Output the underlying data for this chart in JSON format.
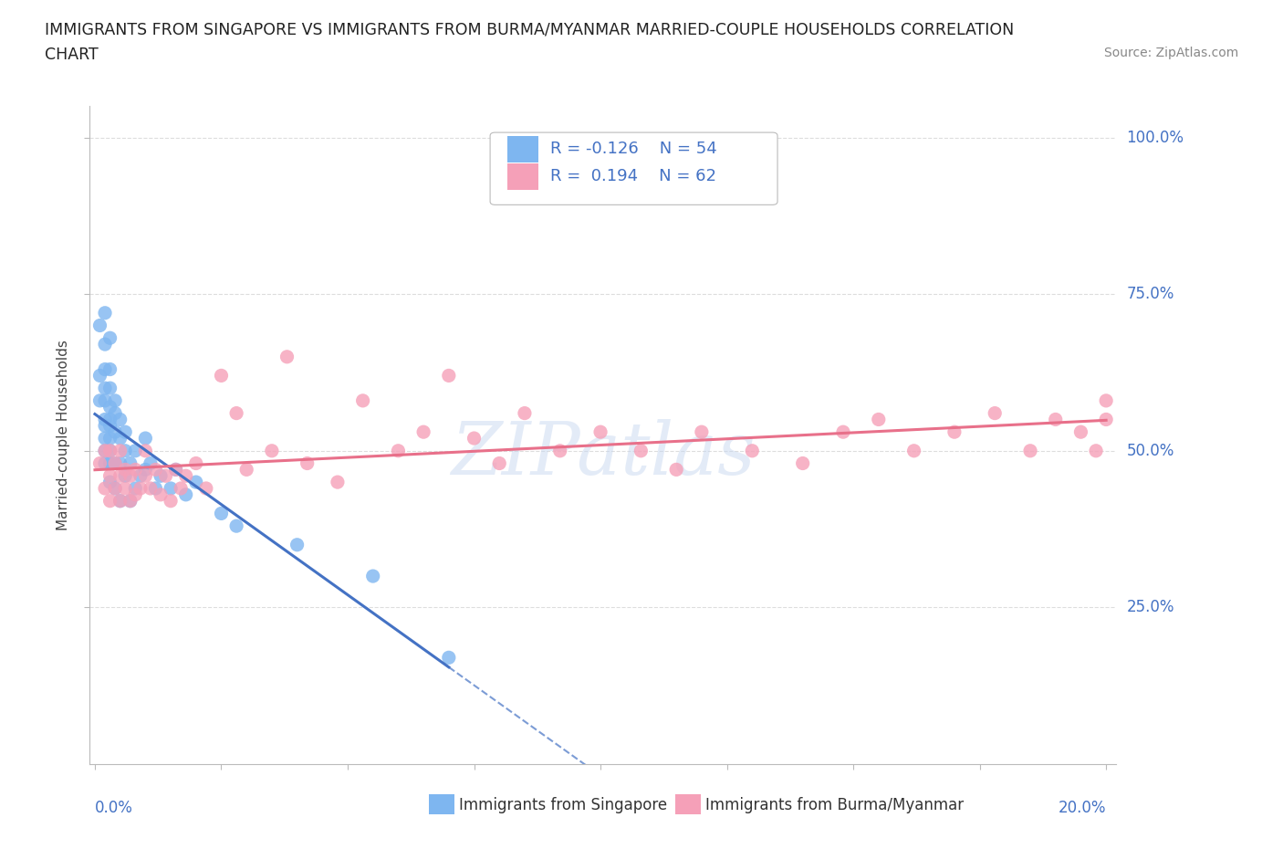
{
  "title_line1": "IMMIGRANTS FROM SINGAPORE VS IMMIGRANTS FROM BURMA/MYANMAR MARRIED-COUPLE HOUSEHOLDS CORRELATION",
  "title_line2": "CHART",
  "source_text": "Source: ZipAtlas.com",
  "ylabel": "Married-couple Households",
  "ytick_labels": [
    "25.0%",
    "50.0%",
    "75.0%",
    "100.0%"
  ],
  "ytick_values": [
    0.25,
    0.5,
    0.75,
    1.0
  ],
  "xlim": [
    0.0,
    0.2
  ],
  "ylim": [
    0.0,
    1.05
  ],
  "watermark": "ZIPatlas",
  "singapore_color": "#7EB6F0",
  "burma_color": "#F5A0B8",
  "trend_singapore_color": "#4472C4",
  "trend_burma_color": "#E8708A",
  "axis_color": "#BBBBBB",
  "text_blue": "#4472C4",
  "grid_color": "#DDDDDD",
  "sg_x": [
    0.001,
    0.001,
    0.001,
    0.002,
    0.002,
    0.002,
    0.002,
    0.002,
    0.002,
    0.002,
    0.002,
    0.002,
    0.002,
    0.003,
    0.003,
    0.003,
    0.003,
    0.003,
    0.003,
    0.003,
    0.003,
    0.003,
    0.003,
    0.004,
    0.004,
    0.004,
    0.004,
    0.004,
    0.005,
    0.005,
    0.005,
    0.005,
    0.006,
    0.006,
    0.006,
    0.007,
    0.007,
    0.008,
    0.008,
    0.009,
    0.01,
    0.01,
    0.011,
    0.012,
    0.013,
    0.015,
    0.016,
    0.018,
    0.02,
    0.025,
    0.028,
    0.04,
    0.055,
    0.07
  ],
  "sg_y": [
    0.58,
    0.62,
    0.7,
    0.52,
    0.55,
    0.58,
    0.6,
    0.63,
    0.67,
    0.72,
    0.5,
    0.54,
    0.48,
    0.52,
    0.55,
    0.57,
    0.6,
    0.63,
    0.68,
    0.45,
    0.48,
    0.5,
    0.54,
    0.53,
    0.56,
    0.48,
    0.44,
    0.58,
    0.52,
    0.55,
    0.48,
    0.42,
    0.5,
    0.46,
    0.53,
    0.48,
    0.42,
    0.5,
    0.44,
    0.46,
    0.52,
    0.47,
    0.48,
    0.44,
    0.46,
    0.44,
    0.47,
    0.43,
    0.45,
    0.4,
    0.38,
    0.35,
    0.3,
    0.17
  ],
  "bm_x": [
    0.001,
    0.002,
    0.002,
    0.003,
    0.003,
    0.003,
    0.004,
    0.004,
    0.005,
    0.005,
    0.005,
    0.006,
    0.006,
    0.007,
    0.007,
    0.008,
    0.008,
    0.009,
    0.01,
    0.01,
    0.011,
    0.012,
    0.013,
    0.014,
    0.015,
    0.016,
    0.017,
    0.018,
    0.02,
    0.022,
    0.025,
    0.028,
    0.03,
    0.035,
    0.038,
    0.042,
    0.048,
    0.053,
    0.06,
    0.065,
    0.07,
    0.075,
    0.08,
    0.085,
    0.092,
    0.1,
    0.108,
    0.115,
    0.12,
    0.13,
    0.14,
    0.148,
    0.155,
    0.162,
    0.17,
    0.178,
    0.185,
    0.19,
    0.195,
    0.198,
    0.2,
    0.2
  ],
  "bm_y": [
    0.48,
    0.44,
    0.5,
    0.42,
    0.46,
    0.5,
    0.44,
    0.48,
    0.42,
    0.46,
    0.5,
    0.44,
    0.47,
    0.42,
    0.46,
    0.43,
    0.47,
    0.44,
    0.46,
    0.5,
    0.44,
    0.47,
    0.43,
    0.46,
    0.42,
    0.47,
    0.44,
    0.46,
    0.48,
    0.44,
    0.62,
    0.56,
    0.47,
    0.5,
    0.65,
    0.48,
    0.45,
    0.58,
    0.5,
    0.53,
    0.62,
    0.52,
    0.48,
    0.56,
    0.5,
    0.53,
    0.5,
    0.47,
    0.53,
    0.5,
    0.48,
    0.53,
    0.55,
    0.5,
    0.53,
    0.56,
    0.5,
    0.55,
    0.53,
    0.5,
    0.58,
    0.55
  ]
}
